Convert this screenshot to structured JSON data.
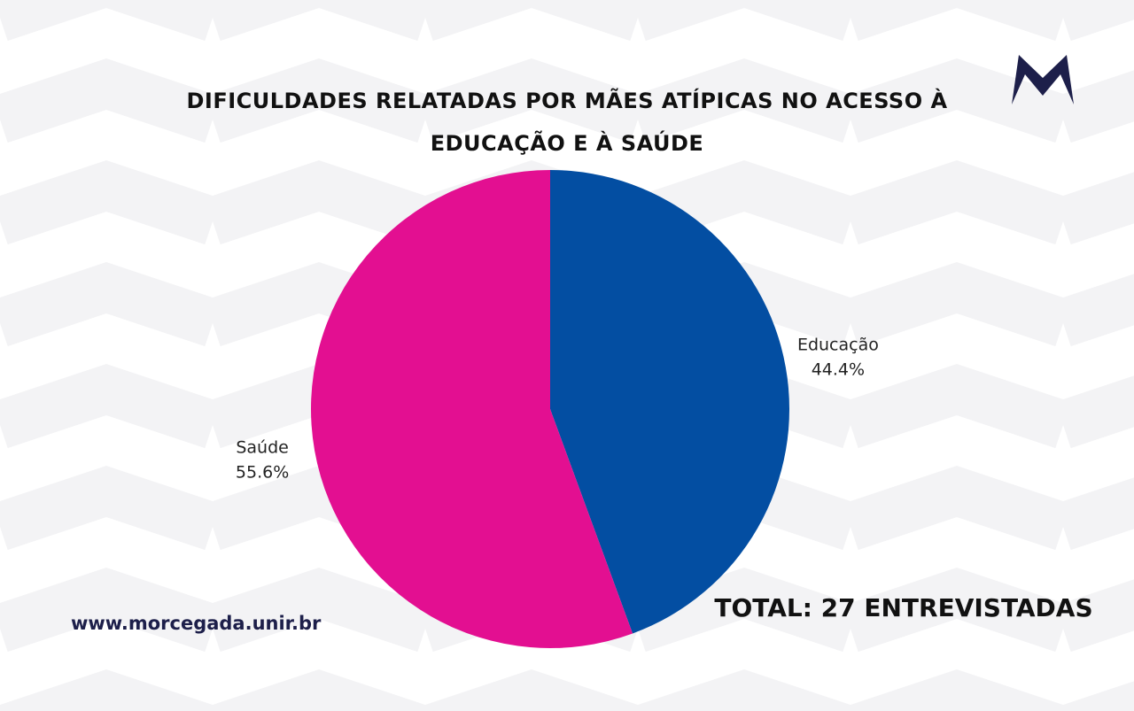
{
  "chart_data": {
    "type": "pie",
    "title": "DIFICULDADES RELATADAS POR MÃES ATÍPICAS NO ACESSO À EDUCAÇÃO E À SAÚDE",
    "categories": [
      "Educação",
      "Saúde"
    ],
    "values": [
      44.4,
      55.6
    ],
    "value_labels": [
      "44.4%",
      "55.6%"
    ],
    "colors": [
      "#034ea2",
      "#e30f91"
    ],
    "annotation": "TOTAL: 27 ENTREVISTADAS",
    "footer": "www.morcegada.unir.br"
  }
}
